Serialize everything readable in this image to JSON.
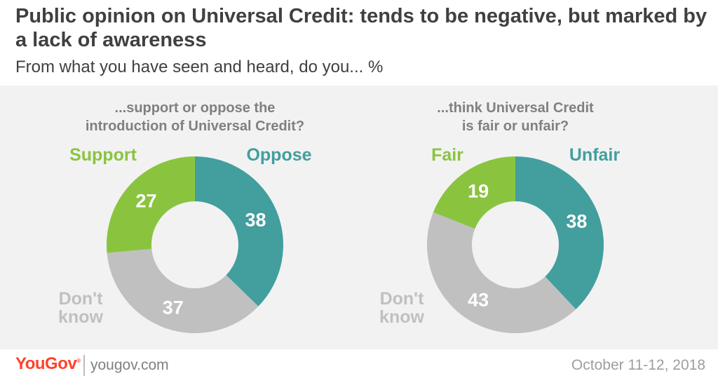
{
  "header": {
    "title": "Public opinion on Universal Credit: tends to be negative, but marked by a lack of awareness",
    "subtitle": "From what you have seen and heard, do you... %"
  },
  "chart_data": [
    {
      "type": "pie",
      "title": "...support or oppose the introduction of Universal Credit?",
      "title_lines": [
        "...support or oppose the",
        "introduction of Universal Credit?"
      ],
      "slices": [
        {
          "label": "Oppose",
          "label_lines": [
            "Oppose"
          ],
          "value": 38,
          "color": "#439e9e"
        },
        {
          "label": "Don't know",
          "label_lines": [
            "Don't",
            "know"
          ],
          "value": 37,
          "color": "#c0c0c0"
        },
        {
          "label": "Support",
          "label_lines": [
            "Support"
          ],
          "value": 27,
          "color": "#8ac43f"
        }
      ]
    },
    {
      "type": "pie",
      "title": "...think Universal Credit is fair or unfair?",
      "title_lines": [
        "...think Universal Credit",
        "is fair or unfair?"
      ],
      "slices": [
        {
          "label": "Unfair",
          "label_lines": [
            "Unfair"
          ],
          "value": 38,
          "color": "#439e9e"
        },
        {
          "label": "Don't know",
          "label_lines": [
            "Don't",
            "know"
          ],
          "value": 43,
          "color": "#c0c0c0"
        },
        {
          "label": "Fair",
          "label_lines": [
            "Fair"
          ],
          "value": 19,
          "color": "#8ac43f"
        }
      ]
    }
  ],
  "footer": {
    "brand": "YouGov",
    "site": "yougov.com",
    "date": "October 11-12, 2018"
  }
}
